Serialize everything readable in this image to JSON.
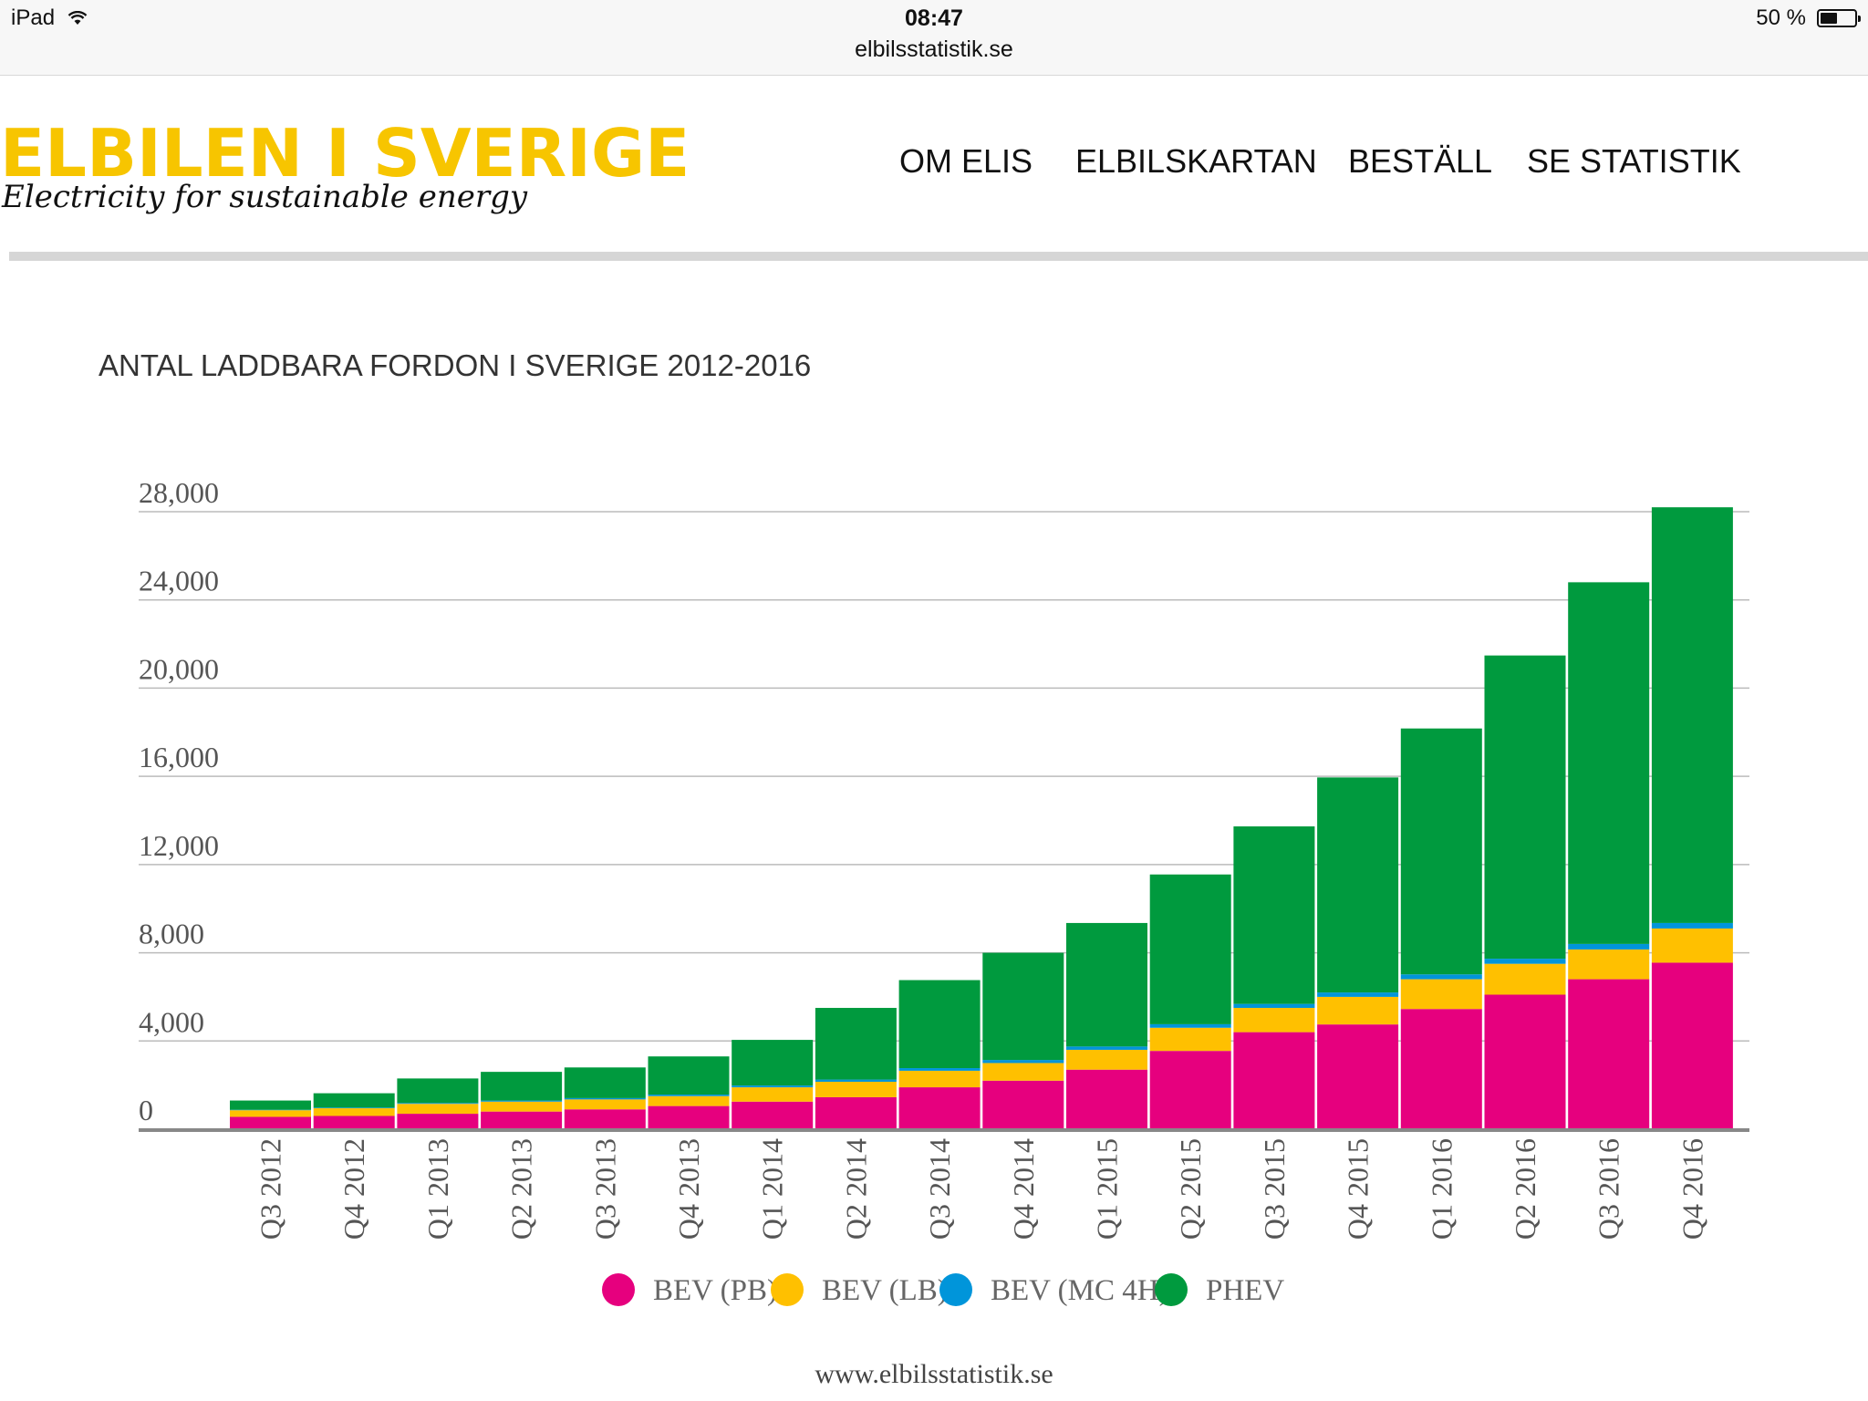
{
  "status_bar": {
    "device": "iPad",
    "time": "08:47",
    "url": "elbilsstatistik.se",
    "battery_text": "50 %",
    "battery_level": 0.5
  },
  "header": {
    "logo_text": "ELBILEN I SVERIGE",
    "tagline": "Electricity for sustainable energy",
    "nav": [
      {
        "label": "OM ELIS"
      },
      {
        "label": "ELBILSKARTAN"
      },
      {
        "label": "BESTÄLL"
      },
      {
        "label": "SE STATISTIK"
      }
    ]
  },
  "footer": {
    "url": "www.elbilsstatistik.se"
  },
  "colors": {
    "bev_pb": "#e6007e",
    "bev_lb": "#ffc000",
    "bev_mc": "#0095da",
    "phev": "#009a3e",
    "grid": "#bbbbbb",
    "axis": "#888888"
  },
  "chart_data": {
    "type": "bar",
    "stacked": true,
    "title": "ANTAL LADDBARA FORDON I SVERIGE 2012-2016",
    "xlabel": "",
    "ylabel": "",
    "ylim": [
      0,
      28000
    ],
    "yticks": [
      "0",
      "4,000",
      "8,000",
      "12,000",
      "16,000",
      "20,000",
      "24,000",
      "28,000"
    ],
    "ytick_values": [
      0,
      4000,
      8000,
      12000,
      16000,
      20000,
      24000,
      28000
    ],
    "grid": true,
    "legend_position": "bottom",
    "categories": [
      "Q3 2012",
      "Q4 2012",
      "Q1 2013",
      "Q2 2013",
      "Q3 2013",
      "Q4 2013",
      "Q1 2014",
      "Q2 2014",
      "Q3 2014",
      "Q4 2014",
      "Q1 2015",
      "Q2 2015",
      "Q3 2015",
      "Q4 2015",
      "Q1 2016",
      "Q2 2016",
      "Q3 2016",
      "Q4 2016"
    ],
    "series": [
      {
        "name": "BEV (PB)",
        "color": "#e6007e",
        "values": [
          560,
          600,
          700,
          800,
          900,
          1050,
          1250,
          1450,
          1900,
          2200,
          2700,
          3550,
          4400,
          4750,
          5450,
          6100,
          6800,
          7550
        ]
      },
      {
        "name": "BEV (LB)",
        "color": "#ffc000",
        "values": [
          300,
          350,
          450,
          450,
          450,
          450,
          650,
          700,
          750,
          800,
          900,
          1050,
          1100,
          1250,
          1350,
          1400,
          1350,
          1550
        ]
      },
      {
        "name": "BEV (MC 4H)",
        "color": "#0095da",
        "values": [
          20,
          30,
          40,
          50,
          60,
          70,
          80,
          100,
          120,
          140,
          150,
          160,
          180,
          200,
          220,
          230,
          250,
          250
        ]
      },
      {
        "name": "PHEV",
        "color": "#009a3e",
        "values": [
          420,
          650,
          1110,
          1300,
          1390,
          1730,
          2070,
          3250,
          3990,
          4860,
          5600,
          6790,
          8050,
          9750,
          11150,
          13750,
          16400,
          18850
        ]
      }
    ]
  }
}
